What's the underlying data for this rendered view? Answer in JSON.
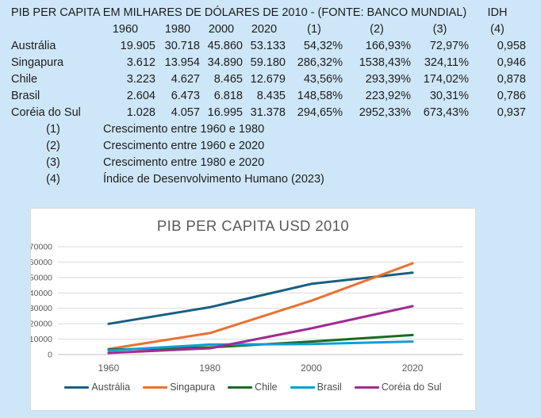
{
  "page": {
    "background": "#CEE7F8"
  },
  "table": {
    "title": "PIB PER CAPITA EM MILHARES DE DÓLARES DE 2010 - (FONTE: BANCO MUNDIAL)",
    "idh_header": "IDH",
    "col_headers": [
      "1960",
      "1980",
      "2000",
      "2020",
      "(1)",
      "(2)",
      "(3)",
      "(4)"
    ],
    "rows": [
      {
        "name": "Austrália",
        "values": [
          "19.905",
          "30.718",
          "45.860",
          "53.133",
          "54,32%",
          "166,93%",
          "72,97%",
          "0,958"
        ]
      },
      {
        "name": "Singapura",
        "values": [
          "3.612",
          "13.954",
          "34.890",
          "59.180",
          "286,32%",
          "1538,43%",
          "324,11%",
          "0,946"
        ]
      },
      {
        "name": "Chile",
        "values": [
          "3.223",
          "4.627",
          "8.465",
          "12.679",
          "43,56%",
          "293,39%",
          "174,02%",
          "0,878"
        ]
      },
      {
        "name": "Brasil",
        "values": [
          "2.604",
          "6.473",
          "6.818",
          "8.435",
          "148,58%",
          "223,92%",
          "30,31%",
          "0,786"
        ]
      },
      {
        "name": "Coréia do Sul",
        "values": [
          "1.028",
          "4.057",
          "16.995",
          "31.378",
          "294,65%",
          "2952,33%",
          "673,43%",
          "0,937"
        ]
      }
    ],
    "footnotes": [
      {
        "label": "(1)",
        "text": "Crescimento entre 1960 e 1980"
      },
      {
        "label": "(2)",
        "text": "Crescimento entre 1960 e 2020"
      },
      {
        "label": "(3)",
        "text": "Crescimento entre 1980 e 2020"
      },
      {
        "label": "(4)",
        "text": "Índice de Desenvolvimento Humano (2023)"
      }
    ]
  },
  "chart_data": {
    "type": "line",
    "title": "PIB PER CAPITA USD 2010",
    "categories": [
      "1960",
      "1980",
      "2000",
      "2020"
    ],
    "series": [
      {
        "name": "Austrália",
        "color": "#156082",
        "values": [
          19905,
          30718,
          45860,
          53133
        ]
      },
      {
        "name": "Singapura",
        "color": "#E97132",
        "values": [
          3612,
          13954,
          34890,
          59180
        ]
      },
      {
        "name": "Chile",
        "color": "#196B24",
        "values": [
          3223,
          4627,
          8465,
          12679
        ]
      },
      {
        "name": "Brasil",
        "color": "#0F9ED5",
        "values": [
          2604,
          6473,
          6818,
          8435
        ]
      },
      {
        "name": "Coréia do Sul",
        "color": "#A02B93",
        "values": [
          1028,
          4057,
          16995,
          31378
        ]
      }
    ],
    "xlabel": "",
    "ylabel": "",
    "ylim": [
      0,
      70000
    ],
    "ytick_step": 10000,
    "grid": true,
    "legend_position": "bottom",
    "panel_background": "#FFFFFF",
    "gridline_color": "#D9D9D9",
    "axis_line_color": "#BFBFBF",
    "title_color": "#595959"
  }
}
